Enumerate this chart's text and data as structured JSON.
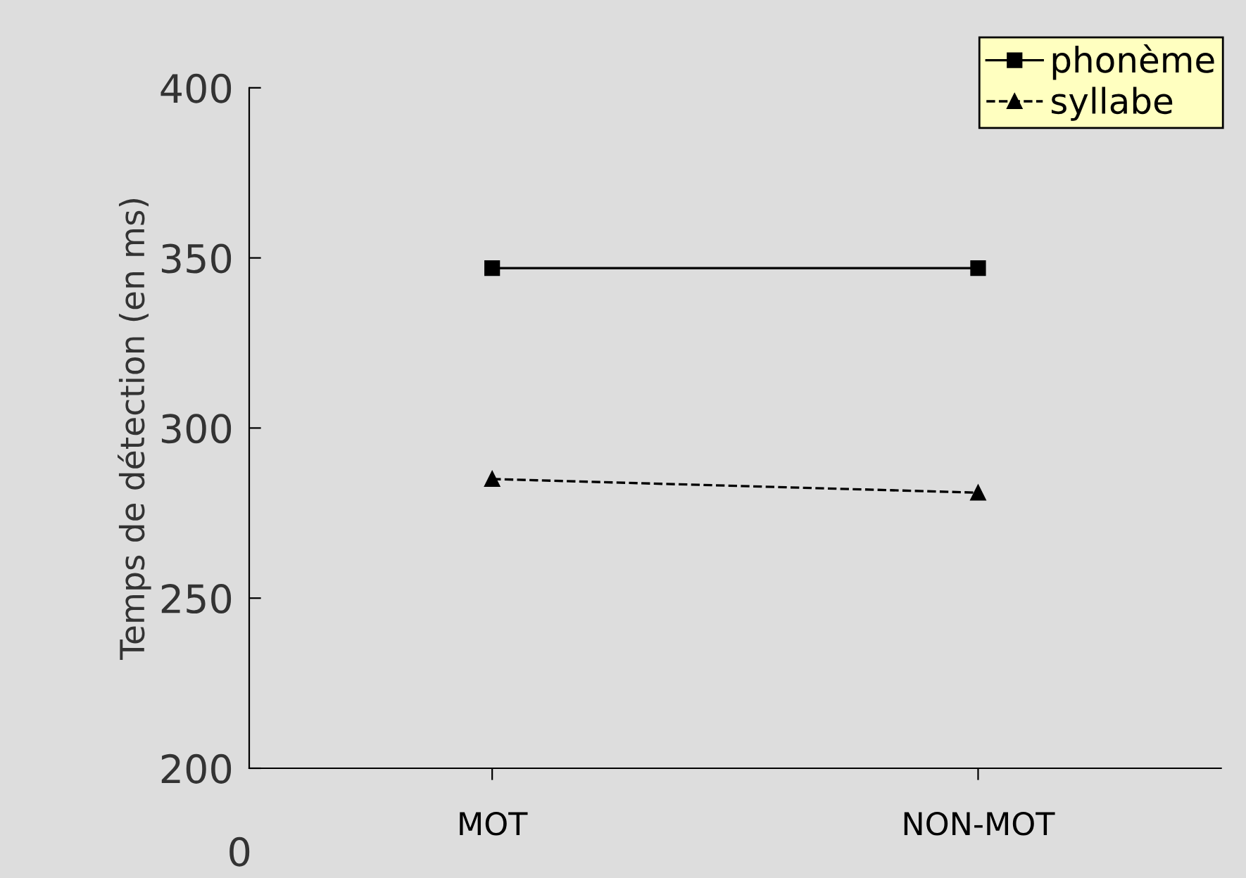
{
  "chart_data": {
    "type": "line",
    "ylabel": "Temps de détection (en ms)",
    "categories": [
      "MOT",
      "NON-MOT"
    ],
    "series": [
      {
        "name": "phonème",
        "color": "#000000",
        "values": [
          347,
          347
        ],
        "marker": "square",
        "line_style": "solid"
      },
      {
        "name": "syllabe",
        "color": "#000000",
        "values": [
          285,
          281
        ],
        "marker": "triangle",
        "line_style": "dashed"
      }
    ],
    "ylim": [
      200,
      400
    ],
    "yticks": [
      200,
      250,
      300,
      350,
      400
    ],
    "grid": false,
    "legend": "top right",
    "annotations": [
      "0"
    ]
  }
}
